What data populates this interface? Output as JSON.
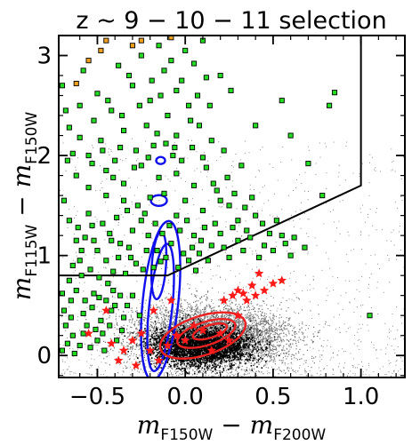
{
  "chart_data": {
    "type": "scatter",
    "title": "z ~ 9 − 10 − 11 selection",
    "xlabel": {
      "m1": "m",
      "s1": "F150W",
      "op": " − ",
      "m2": "m",
      "s2": "F200W"
    },
    "ylabel": {
      "m1": "m",
      "s1": "F115W",
      "op": " − ",
      "m2": "m",
      "s2": "F150W"
    },
    "xlim": [
      -0.72,
      1.25
    ],
    "ylim": [
      -0.22,
      3.2
    ],
    "xticks": [
      -0.5,
      0.0,
      0.5,
      1.0
    ],
    "xtick_labels": [
      "−0.5",
      "0.0",
      "0.5",
      "1.0"
    ],
    "yticks": [
      0,
      1,
      2,
      3
    ],
    "ytick_labels": [
      "0",
      "1",
      "2",
      "3"
    ],
    "grid": false,
    "colors": {
      "background_cloud": "#000000",
      "candidates": "#22dd22",
      "orange": "#f0a020",
      "stars": "#ff1a1a",
      "blue_contour": "#1010ee",
      "red_contour": "#ee2222",
      "selection_line": "#000000"
    },
    "selection_boundary": [
      {
        "x": -0.72,
        "y": 0.8
      },
      {
        "x": -0.1,
        "y": 0.8
      },
      {
        "x": 1.0,
        "y": 1.7
      },
      {
        "x": 1.0,
        "y": 3.2
      }
    ],
    "series": [
      {
        "marker": "square-green",
        "points": [
          [
            -0.62,
            1.15
          ],
          [
            -0.55,
            1.42
          ],
          [
            -0.45,
            1.6
          ],
          [
            -0.35,
            1.55
          ],
          [
            -0.3,
            1.25
          ],
          [
            -0.25,
            1.35
          ],
          [
            -0.2,
            1.58
          ],
          [
            -0.12,
            1.62
          ],
          [
            -0.05,
            1.4
          ],
          [
            0.0,
            1.55
          ],
          [
            0.05,
            1.2
          ],
          [
            0.1,
            1.45
          ],
          [
            -0.6,
            0.95
          ],
          [
            -0.5,
            1.05
          ],
          [
            -0.42,
            1.15
          ],
          [
            -0.38,
            0.98
          ],
          [
            -0.32,
            1.08
          ],
          [
            -0.28,
            0.92
          ],
          [
            -0.22,
            1.05
          ],
          [
            -0.18,
            0.88
          ],
          [
            -0.08,
            1.12
          ],
          [
            0.02,
            0.95
          ],
          [
            0.08,
            1.02
          ],
          [
            0.15,
            1.1
          ],
          [
            0.2,
            1.22
          ],
          [
            0.25,
            0.98
          ],
          [
            0.3,
            1.15
          ],
          [
            -0.65,
            0.55
          ],
          [
            -0.58,
            0.42
          ],
          [
            -0.52,
            0.62
          ],
          [
            -0.48,
            0.35
          ],
          [
            -0.44,
            0.72
          ],
          [
            -0.4,
            0.5
          ],
          [
            -0.36,
            0.25
          ],
          [
            -0.3,
            0.6
          ],
          [
            -0.26,
            0.4
          ],
          [
            -0.64,
            0.2
          ],
          [
            -0.6,
            0.1
          ],
          [
            -0.56,
            0.3
          ],
          [
            -0.5,
            0.15
          ],
          [
            -0.46,
            0.05
          ],
          [
            -0.42,
            0.45
          ],
          [
            -0.66,
            0.75
          ],
          [
            -0.7,
            0.62
          ],
          [
            -0.68,
            0.3
          ],
          [
            -0.55,
            2.0
          ],
          [
            -0.48,
            2.15
          ],
          [
            -0.4,
            1.95
          ],
          [
            -0.35,
            2.25
          ],
          [
            -0.28,
            2.05
          ],
          [
            -0.22,
            2.3
          ],
          [
            -0.18,
            2.1
          ],
          [
            -0.1,
            2.4
          ],
          [
            -0.05,
            2.2
          ],
          [
            0.02,
            2.5
          ],
          [
            0.08,
            2.3
          ],
          [
            -0.6,
            2.5
          ],
          [
            -0.5,
            2.62
          ],
          [
            -0.42,
            2.45
          ],
          [
            -0.3,
            2.7
          ],
          [
            -0.2,
            2.55
          ],
          [
            -0.12,
            2.85
          ],
          [
            -0.05,
            2.65
          ],
          [
            0.05,
            2.92
          ],
          [
            0.12,
            2.78
          ],
          [
            -0.38,
            2.9
          ],
          [
            -0.25,
            3.0
          ],
          [
            -0.15,
            3.1
          ],
          [
            0.0,
            3.05
          ],
          [
            0.1,
            3.15
          ],
          [
            -0.62,
            1.8
          ],
          [
            -0.55,
            1.68
          ],
          [
            -0.45,
            1.85
          ],
          [
            -0.35,
            1.72
          ],
          [
            -0.25,
            1.9
          ],
          [
            -0.15,
            1.78
          ],
          [
            -0.05,
            1.82
          ],
          [
            0.05,
            1.7
          ],
          [
            0.12,
            1.88
          ],
          [
            0.18,
            1.65
          ],
          [
            0.25,
            1.5
          ],
          [
            0.3,
            1.35
          ],
          [
            0.35,
            1.25
          ],
          [
            0.4,
            1.4
          ],
          [
            0.45,
            1.1
          ],
          [
            0.5,
            1.05
          ],
          [
            0.55,
            1.2
          ],
          [
            0.6,
            1.0
          ],
          [
            0.68,
            1.08
          ],
          [
            0.38,
            1.58
          ],
          [
            0.22,
            2.05
          ],
          [
            0.32,
            1.9
          ],
          [
            0.15,
            2.15
          ],
          [
            0.4,
            2.3
          ],
          [
            0.55,
            2.55
          ],
          [
            0.6,
            2.2
          ],
          [
            0.7,
            1.92
          ],
          [
            0.82,
            2.5
          ],
          [
            0.85,
            2.63
          ],
          [
            0.78,
            1.6
          ],
          [
            1.05,
            0.4
          ],
          [
            -0.7,
            2.7
          ],
          [
            -0.68,
            2.45
          ],
          [
            -0.66,
            2.28
          ],
          [
            -0.64,
            2.02
          ],
          [
            -0.69,
            1.55
          ],
          [
            -0.66,
            1.35
          ],
          [
            -0.61,
            1.28
          ],
          [
            -0.57,
            1.18
          ],
          [
            -0.53,
            1.3
          ],
          [
            -0.47,
            1.32
          ],
          [
            -0.43,
            1.22
          ],
          [
            -0.39,
            1.38
          ],
          [
            -0.33,
            1.45
          ],
          [
            -0.27,
            1.5
          ],
          [
            -0.23,
            1.42
          ],
          [
            -0.17,
            1.32
          ],
          [
            -0.13,
            1.22
          ],
          [
            -0.09,
            1.3
          ],
          [
            -0.03,
            1.25
          ],
          [
            0.01,
            1.35
          ],
          [
            0.04,
            1.08
          ],
          [
            0.11,
            1.28
          ],
          [
            0.13,
            0.95
          ],
          [
            0.17,
            1.32
          ],
          [
            0.22,
            1.08
          ],
          [
            0.27,
            1.28
          ],
          [
            0.33,
            1.05
          ],
          [
            0.37,
            1.18
          ],
          [
            0.42,
            0.98
          ],
          [
            -0.64,
            0.9
          ],
          [
            -0.59,
            0.8
          ],
          [
            -0.54,
            0.86
          ],
          [
            -0.49,
            0.78
          ],
          [
            -0.41,
            0.84
          ],
          [
            -0.34,
            0.82
          ],
          [
            -0.24,
            0.86
          ],
          [
            -0.14,
            0.94
          ],
          [
            -0.04,
            0.88
          ],
          [
            0.06,
            0.85
          ],
          [
            -0.69,
            0.45
          ],
          [
            -0.65,
            0.38
          ],
          [
            -0.62,
            0.65
          ],
          [
            -0.57,
            0.55
          ],
          [
            -0.53,
            0.48
          ],
          [
            -0.49,
            0.58
          ],
          [
            -0.45,
            0.55
          ],
          [
            -0.41,
            0.65
          ],
          [
            -0.37,
            0.6
          ],
          [
            -0.33,
            0.5
          ],
          [
            -0.7,
            0.05
          ],
          [
            -0.67,
            0.12
          ],
          [
            -0.63,
            0.02
          ],
          [
            -0.58,
            0.22
          ],
          [
            -0.54,
            0.08
          ],
          [
            -0.51,
            0.26
          ],
          [
            -0.47,
            0.22
          ],
          [
            -0.43,
            0.3
          ],
          [
            -0.39,
            0.15
          ],
          [
            -0.35,
            0.38
          ],
          [
            -0.58,
            2.85
          ],
          [
            -0.52,
            2.35
          ],
          [
            -0.44,
            2.55
          ],
          [
            -0.36,
            2.4
          ],
          [
            -0.32,
            2.8
          ],
          [
            -0.26,
            2.5
          ],
          [
            -0.19,
            2.75
          ],
          [
            -0.14,
            2.6
          ],
          [
            -0.08,
            2.95
          ],
          [
            -0.02,
            2.75
          ],
          [
            0.03,
            2.35
          ],
          [
            0.07,
            2.6
          ],
          [
            0.14,
            2.5
          ],
          [
            0.2,
            2.8
          ],
          [
            0.26,
            2.65
          ],
          [
            -0.11,
            2.12
          ],
          [
            -0.07,
            2.0
          ],
          [
            -0.02,
            1.95
          ],
          [
            0.04,
            2.08
          ],
          [
            0.1,
            1.98
          ],
          [
            -0.21,
            1.2
          ],
          [
            -0.16,
            1.05
          ],
          [
            -0.11,
            0.98
          ],
          [
            -0.01,
            1.02
          ],
          [
            0.09,
            1.15
          ],
          [
            -0.31,
            0.98
          ],
          [
            -0.37,
            1.12
          ],
          [
            -0.45,
            0.95
          ],
          [
            -0.52,
            1.15
          ],
          [
            -0.59,
            1.05
          ],
          [
            0.28,
            1.62
          ],
          [
            0.34,
            1.48
          ],
          [
            0.24,
            1.78
          ],
          [
            0.2,
            1.55
          ],
          [
            0.16,
            1.72
          ],
          [
            0.44,
            1.32
          ],
          [
            0.48,
            1.22
          ],
          [
            0.52,
            1.35
          ],
          [
            0.57,
            1.12
          ],
          [
            0.62,
            1.18
          ],
          [
            -0.67,
            1.95
          ],
          [
            -0.6,
            2.18
          ],
          [
            -0.53,
            1.92
          ],
          [
            -0.47,
            2.05
          ],
          [
            -0.41,
            1.78
          ],
          [
            -0.37,
            2.08
          ],
          [
            -0.29,
            1.88
          ],
          [
            -0.21,
            1.98
          ],
          [
            -0.16,
            2.22
          ],
          [
            -0.06,
            2.08
          ]
        ]
      },
      {
        "marker": "square-orange",
        "points": [
          [
            -0.55,
            2.95
          ],
          [
            -0.48,
            3.05
          ],
          [
            -0.62,
            2.72
          ],
          [
            -0.45,
            3.15
          ],
          [
            -0.25,
            3.15
          ],
          [
            -0.08,
            3.18
          ],
          [
            -0.3,
            3.1
          ]
        ]
      },
      {
        "marker": "star-red",
        "points": [
          [
            -0.55,
            0.22
          ],
          [
            -0.42,
            0.12
          ],
          [
            -0.35,
            0.05
          ],
          [
            -0.3,
            0.15
          ],
          [
            -0.25,
            0.22
          ],
          [
            -0.2,
            0.05
          ],
          [
            -0.15,
            -0.05
          ],
          [
            -0.1,
            0.1
          ],
          [
            -0.05,
            0.2
          ],
          [
            0.0,
            0.15
          ],
          [
            0.05,
            0.3
          ],
          [
            0.1,
            0.25
          ],
          [
            0.15,
            0.05
          ],
          [
            0.2,
            0.22
          ],
          [
            0.25,
            0.15
          ],
          [
            0.3,
            0.4
          ],
          [
            0.35,
            0.55
          ],
          [
            0.4,
            0.6
          ],
          [
            0.45,
            0.65
          ],
          [
            0.5,
            0.72
          ],
          [
            0.55,
            0.75
          ],
          [
            0.42,
            0.82
          ],
          [
            0.38,
            0.7
          ],
          [
            -0.45,
            0.45
          ],
          [
            -0.38,
            -0.05
          ],
          [
            -0.28,
            -0.1
          ],
          [
            -0.18,
            0.45
          ],
          [
            -0.08,
            0.55
          ],
          [
            0.3,
            0.65
          ],
          [
            0.22,
            0.55
          ],
          [
            0.27,
            0.6
          ],
          [
            0.33,
            0.62
          ]
        ]
      }
    ],
    "contours": [
      {
        "color": "blue",
        "levels": 3,
        "note": "elongated density from (-0.15,0) to (-0.15,1.5), blob at (-0.15,1.95)"
      },
      {
        "color": "red",
        "levels": 3,
        "note": "density blob centred near (0.1,0.2)"
      }
    ]
  }
}
